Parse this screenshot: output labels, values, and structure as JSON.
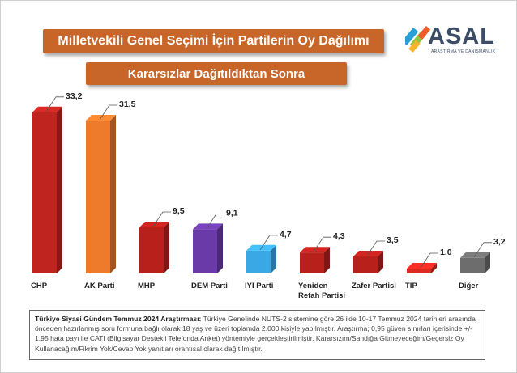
{
  "title": "Milletvekili Genel Seçimi İçin Partilerin Oy Dağılımı",
  "subtitle": "Kararsızlar Dağıtıldıktan Sonra",
  "logo": {
    "name": "ASAL",
    "tagline": "ARAŞTIRMA VE DANIŞMANLIK",
    "colors": [
      "#2a9fd6",
      "#8cc63f",
      "#f15a29",
      "#f7b32b",
      "#3b4c66"
    ]
  },
  "chart_data": {
    "type": "bar",
    "categories": [
      "CHP",
      "AK Parti",
      "MHP",
      "DEM Parti",
      "İYİ Parti",
      "Yeniden Refah Partisi",
      "Zafer Partisi",
      "TİP",
      "Diğer"
    ],
    "values": [
      33.2,
      31.5,
      9.5,
      9.1,
      4.7,
      4.3,
      3.5,
      1.0,
      3.2
    ],
    "value_labels": [
      "33,2",
      "31,5",
      "9,5",
      "9,1",
      "4,7",
      "4,3",
      "3,5",
      "1,0",
      "3,2"
    ],
    "colors": [
      "#c0241f",
      "#ee7a2c",
      "#b8201c",
      "#6a3aa8",
      "#3aa8e4",
      "#b8201c",
      "#b8201c",
      "#dd2a20",
      "#6d6d6d"
    ],
    "ylim": [
      0,
      35
    ],
    "grid": false,
    "legend": "none"
  },
  "footnote": {
    "heading": "Türkiye Siyasi Gündem Temmuz 2024 Araştırması:",
    "text": " Türkiye Genelinde NUTS-2 sistemine göre 26 ilde 10-17 Temmuz 2024 tarihleri arasında önceden hazırlanmış soru formuna bağlı olarak 18 yaş ve üzeri toplamda 2.000 kişiyle yapılmıştır. Araştırma; 0,95 güven sınırları içerisinde +/- 1,95 hata payı ile CATI (Bilgisayar Destekli Telefonda Anket) yöntemiyle gerçekleştirilmiştir. Kararsızım/Sandığa Gitmeyeceğim/Geçersiz Oy Kullanacağım/Fikrim Yok/Cevap Yok yanıtları orantısal olarak dağıtılmıştır."
  }
}
